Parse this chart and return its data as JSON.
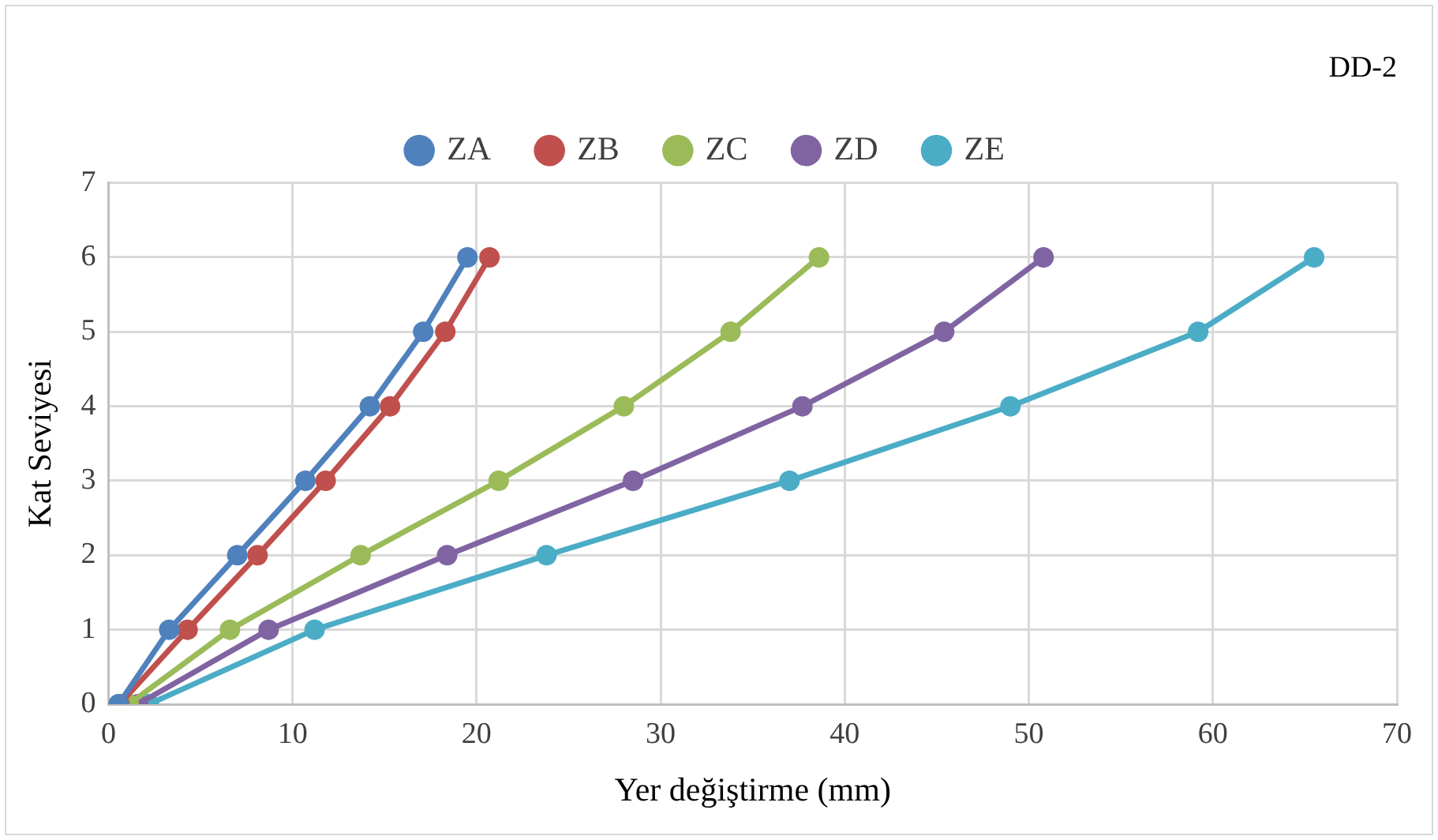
{
  "chart_data": {
    "type": "line",
    "title": "DD-2",
    "xlabel": "Yer değiştirme (mm)",
    "ylabel": "Kat Seviyesi",
    "series": [
      {
        "name": "ZA",
        "color": "#4f81bd",
        "x": [
          0.55,
          3.3,
          7.0,
          10.7,
          14.2,
          17.1,
          19.5
        ],
        "values": [
          0,
          1,
          2,
          3,
          4,
          5,
          6
        ]
      },
      {
        "name": "ZB",
        "color": "#c0504d",
        "x": [
          0.6,
          4.3,
          8.1,
          11.8,
          15.3,
          18.3,
          20.7
        ],
        "values": [
          0,
          1,
          2,
          3,
          4,
          5,
          6
        ]
      },
      {
        "name": "ZC",
        "color": "#9bbb59",
        "x": [
          1.1,
          6.6,
          13.7,
          21.2,
          28.0,
          33.8,
          38.6
        ],
        "values": [
          0,
          1,
          2,
          3,
          4,
          5,
          6
        ]
      },
      {
        "name": "ZD",
        "color": "#8064a2",
        "x": [
          1.6,
          8.7,
          18.4,
          28.5,
          37.7,
          45.4,
          50.8
        ],
        "values": [
          0,
          1,
          2,
          3,
          4,
          5,
          6
        ]
      },
      {
        "name": "ZE",
        "color": "#4bacc6",
        "x": [
          2.2,
          11.2,
          23.8,
          37.0,
          49.0,
          59.2,
          65.5
        ],
        "values": [
          0,
          1,
          2,
          3,
          4,
          5,
          6
        ]
      }
    ],
    "xlim": [
      0,
      70
    ],
    "xticks": [
      0,
      10,
      20,
      30,
      40,
      50,
      60,
      70
    ],
    "ylim": [
      0,
      7
    ],
    "yticks": [
      0,
      1,
      2,
      3,
      4,
      5,
      6,
      7
    ],
    "grid": true,
    "legend": "top",
    "marker": "circle",
    "line_style": "solid"
  }
}
